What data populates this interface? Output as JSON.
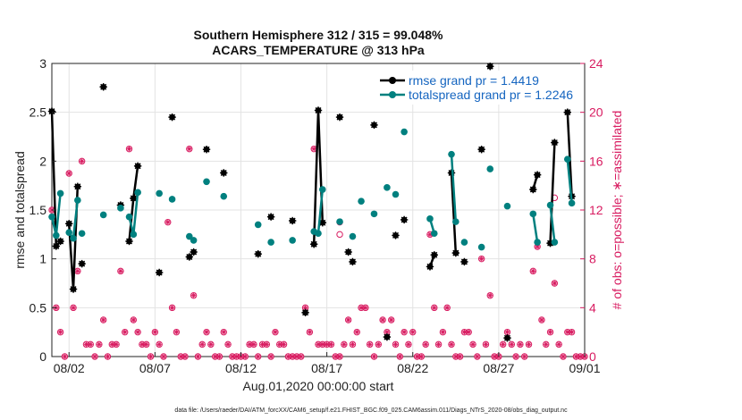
{
  "chart_data": {
    "type": "line",
    "title_line1": "Southern Hemisphere 312 / 315 = 99.048%",
    "title_line2": "ACARS_TEMPERATURE @ 313 hPa",
    "ylabel": "rmse and totalspread",
    "ylabel_right": "# of obs: o=possible; ∗=assimilated",
    "xlabel": "Aug.01,2020 00:00:00 start",
    "footnote": "data file: /Users/raeder/DAI/ATM_forcXX/CAM6_setup/f.e21.FHIST_BGC.f09_025.CAM6assim.011/Diags_NTrS_2020-08/obs_diag_output.nc",
    "ylim": [
      0,
      3
    ],
    "ylim_right": [
      0,
      24
    ],
    "xlim": [
      1,
      32
    ],
    "yticks": [
      0,
      0.5,
      1,
      1.5,
      2,
      2.5,
      3
    ],
    "ytick_labels": [
      "0",
      "0.5",
      "1",
      "1.5",
      "2",
      "2.5",
      "3"
    ],
    "yticks_right": [
      0,
      4,
      8,
      12,
      16,
      20,
      24
    ],
    "xticks": [
      2,
      7,
      12,
      17,
      22,
      27,
      32
    ],
    "xtick_labels": [
      "08/02",
      "08/07",
      "08/12",
      "08/17",
      "08/22",
      "08/27",
      "09/01"
    ],
    "colors": {
      "rmse": "#000000",
      "spread": "#00807f",
      "obs": "#d81b60",
      "legend_text": "#1565c0",
      "grid": "#e3e3e3"
    },
    "series": [
      {
        "name": "rmse grand pr = 1.4419",
        "key": "rmse",
        "points": [
          [
            1.0,
            2.51
          ],
          [
            1.25,
            1.13
          ],
          [
            1.5,
            1.18
          ],
          [
            2.0,
            1.36
          ],
          [
            2.25,
            0.69
          ],
          [
            2.5,
            1.74
          ],
          [
            2.75,
            0.95
          ],
          [
            4.0,
            2.76
          ],
          [
            5.0,
            1.55
          ],
          [
            5.5,
            1.18
          ],
          [
            5.75,
            1.62
          ],
          [
            6.0,
            1.95
          ],
          [
            7.25,
            0.86
          ],
          [
            8.0,
            2.45
          ],
          [
            9.0,
            1.02
          ],
          [
            9.25,
            1.07
          ],
          [
            10.0,
            2.12
          ],
          [
            11.0,
            1.88
          ],
          [
            13.0,
            1.05
          ],
          [
            13.75,
            1.43
          ],
          [
            15.0,
            1.39
          ],
          [
            15.75,
            0.45
          ],
          [
            16.25,
            1.15
          ],
          [
            16.5,
            2.52
          ],
          [
            16.75,
            1.37
          ],
          [
            17.75,
            2.45
          ],
          [
            18.25,
            1.07
          ],
          [
            18.5,
            0.97
          ],
          [
            19.75,
            2.37
          ],
          [
            20.5,
            0.2
          ],
          [
            21.0,
            1.24
          ],
          [
            21.5,
            1.4
          ],
          [
            23.0,
            0.92
          ],
          [
            23.25,
            1.04
          ],
          [
            24.25,
            1.88
          ],
          [
            24.5,
            1.06
          ],
          [
            25.0,
            0.97
          ],
          [
            26.0,
            2.12
          ],
          [
            26.5,
            2.97
          ],
          [
            27.5,
            0.19
          ],
          [
            29.0,
            1.71
          ],
          [
            29.25,
            1.86
          ],
          [
            30.0,
            1.16
          ],
          [
            30.25,
            2.19
          ],
          [
            31.0,
            2.5
          ],
          [
            31.25,
            1.64
          ]
        ],
        "segments": [
          [
            [
              1.0,
              2.51
            ],
            [
              1.25,
              1.13
            ],
            [
              1.5,
              1.18
            ]
          ],
          [
            [
              2.0,
              1.36
            ],
            [
              2.25,
              0.69
            ],
            [
              2.5,
              1.74
            ]
          ],
          [
            [
              5.5,
              1.18
            ],
            [
              5.75,
              1.62
            ],
            [
              6.0,
              1.95
            ]
          ],
          [
            [
              16.25,
              1.15
            ],
            [
              16.5,
              2.52
            ],
            [
              16.75,
              1.37
            ]
          ],
          [
            [
              23.0,
              0.92
            ],
            [
              23.25,
              1.04
            ]
          ],
          [
            [
              24.25,
              1.88
            ],
            [
              24.5,
              1.06
            ]
          ],
          [
            [
              29.0,
              1.71
            ],
            [
              29.25,
              1.86
            ]
          ],
          [
            [
              30.0,
              1.16
            ],
            [
              30.25,
              2.19
            ]
          ],
          [
            [
              31.0,
              2.5
            ],
            [
              31.25,
              1.64
            ]
          ]
        ]
      },
      {
        "name": "totalspread grand pr = 1.2246",
        "key": "spread",
        "points": [
          [
            1.0,
            1.43
          ],
          [
            1.25,
            1.24
          ],
          [
            1.5,
            1.67
          ],
          [
            2.0,
            1.27
          ],
          [
            2.25,
            1.21
          ],
          [
            2.5,
            1.6
          ],
          [
            2.75,
            1.26
          ],
          [
            4.0,
            1.45
          ],
          [
            5.0,
            1.52
          ],
          [
            5.5,
            1.43
          ],
          [
            5.75,
            1.25
          ],
          [
            6.0,
            1.68
          ],
          [
            7.25,
            1.67
          ],
          [
            8.0,
            1.61
          ],
          [
            9.0,
            1.23
          ],
          [
            9.25,
            1.19
          ],
          [
            10.0,
            1.79
          ],
          [
            11.0,
            1.64
          ],
          [
            13.0,
            1.35
          ],
          [
            13.75,
            1.17
          ],
          [
            15.0,
            1.19
          ],
          [
            16.25,
            1.28
          ],
          [
            16.5,
            1.26
          ],
          [
            16.75,
            1.71
          ],
          [
            17.75,
            1.38
          ],
          [
            18.5,
            1.23
          ],
          [
            19.0,
            1.59
          ],
          [
            19.75,
            1.46
          ],
          [
            20.5,
            1.73
          ],
          [
            21.0,
            1.66
          ],
          [
            21.5,
            2.3
          ],
          [
            23.0,
            1.41
          ],
          [
            23.25,
            1.26
          ],
          [
            24.25,
            2.07
          ],
          [
            24.5,
            1.38
          ],
          [
            25.0,
            1.17
          ],
          [
            26.0,
            1.12
          ],
          [
            26.5,
            1.92
          ],
          [
            27.5,
            1.54
          ],
          [
            29.0,
            1.46
          ],
          [
            29.25,
            1.17
          ],
          [
            30.0,
            1.55
          ],
          [
            30.25,
            1.17
          ],
          [
            31.0,
            2.02
          ],
          [
            31.25,
            1.57
          ]
        ],
        "segments": [
          [
            [
              1.0,
              1.43
            ],
            [
              1.25,
              1.24
            ],
            [
              1.5,
              1.67
            ]
          ],
          [
            [
              2.0,
              1.27
            ],
            [
              2.25,
              1.21
            ],
            [
              2.5,
              1.6
            ]
          ],
          [
            [
              5.5,
              1.43
            ],
            [
              5.75,
              1.25
            ],
            [
              6.0,
              1.68
            ]
          ],
          [
            [
              16.25,
              1.28
            ],
            [
              16.5,
              1.26
            ],
            [
              16.75,
              1.71
            ]
          ],
          [
            [
              23.0,
              1.41
            ],
            [
              23.25,
              1.26
            ]
          ],
          [
            [
              24.25,
              2.07
            ],
            [
              24.5,
              1.38
            ]
          ],
          [
            [
              29.0,
              1.46
            ],
            [
              29.25,
              1.17
            ]
          ],
          [
            [
              30.0,
              1.55
            ],
            [
              30.25,
              1.17
            ]
          ],
          [
            [
              31.0,
              2.02
            ],
            [
              31.25,
              1.57
            ]
          ]
        ]
      }
    ],
    "obs_counts": [
      [
        1.0,
        12
      ],
      [
        1.25,
        4
      ],
      [
        1.5,
        2
      ],
      [
        1.75,
        0
      ],
      [
        2.0,
        15
      ],
      [
        2.25,
        4
      ],
      [
        2.5,
        7
      ],
      [
        2.75,
        16
      ],
      [
        3.0,
        1
      ],
      [
        3.25,
        1
      ],
      [
        3.5,
        0
      ],
      [
        3.75,
        1
      ],
      [
        4.0,
        3
      ],
      [
        4.25,
        0
      ],
      [
        4.5,
        1
      ],
      [
        4.75,
        1
      ],
      [
        5.0,
        7
      ],
      [
        5.25,
        2
      ],
      [
        5.5,
        17
      ],
      [
        5.75,
        3
      ],
      [
        6.0,
        2
      ],
      [
        6.25,
        1
      ],
      [
        6.5,
        1
      ],
      [
        6.75,
        0
      ],
      [
        7.0,
        2
      ],
      [
        7.25,
        1
      ],
      [
        7.5,
        0
      ],
      [
        7.75,
        11
      ],
      [
        8.0,
        4
      ],
      [
        8.25,
        2
      ],
      [
        8.5,
        0
      ],
      [
        8.75,
        0
      ],
      [
        9.0,
        17
      ],
      [
        9.25,
        5
      ],
      [
        9.5,
        0
      ],
      [
        9.75,
        1
      ],
      [
        10.0,
        2
      ],
      [
        10.25,
        1
      ],
      [
        10.5,
        0
      ],
      [
        10.75,
        0
      ],
      [
        11.0,
        2
      ],
      [
        11.25,
        1
      ],
      [
        11.5,
        0
      ],
      [
        11.75,
        0
      ],
      [
        12.0,
        0
      ],
      [
        12.25,
        0
      ],
      [
        12.5,
        1
      ],
      [
        12.75,
        1
      ],
      [
        13.0,
        0
      ],
      [
        13.25,
        1
      ],
      [
        13.5,
        1
      ],
      [
        13.75,
        0
      ],
      [
        14.0,
        2
      ],
      [
        14.25,
        1
      ],
      [
        14.5,
        1
      ],
      [
        14.75,
        0
      ],
      [
        15.0,
        0
      ],
      [
        15.25,
        0
      ],
      [
        15.5,
        0
      ],
      [
        15.75,
        4
      ],
      [
        16.0,
        2
      ],
      [
        16.25,
        17
      ],
      [
        16.5,
        1
      ],
      [
        16.75,
        1
      ],
      [
        17.0,
        1
      ],
      [
        17.25,
        1
      ],
      [
        17.5,
        0
      ],
      [
        17.75,
        0
      ],
      [
        18.0,
        1
      ],
      [
        18.25,
        3
      ],
      [
        18.5,
        1
      ],
      [
        18.75,
        2
      ],
      [
        19.0,
        4
      ],
      [
        19.25,
        4
      ],
      [
        19.5,
        1
      ],
      [
        19.75,
        0
      ],
      [
        20.0,
        1
      ],
      [
        20.25,
        3
      ],
      [
        20.5,
        2
      ],
      [
        20.75,
        3
      ],
      [
        21.0,
        1
      ],
      [
        21.25,
        0
      ],
      [
        21.5,
        2
      ],
      [
        21.75,
        1
      ],
      [
        22.0,
        2
      ],
      [
        22.25,
        0
      ],
      [
        22.5,
        0
      ],
      [
        22.75,
        1
      ],
      [
        23.0,
        10
      ],
      [
        23.25,
        4
      ],
      [
        23.5,
        1
      ],
      [
        23.75,
        2
      ],
      [
        24.0,
        4
      ],
      [
        24.25,
        1
      ],
      [
        24.5,
        0
      ],
      [
        24.75,
        0
      ],
      [
        25.0,
        2
      ],
      [
        25.25,
        2
      ],
      [
        25.5,
        1
      ],
      [
        25.75,
        0
      ],
      [
        26.0,
        8
      ],
      [
        26.25,
        1
      ],
      [
        26.5,
        5
      ],
      [
        26.75,
        0
      ],
      [
        27.0,
        0
      ],
      [
        27.25,
        1
      ],
      [
        27.5,
        2
      ],
      [
        27.75,
        1
      ],
      [
        28.0,
        0
      ],
      [
        28.25,
        1
      ],
      [
        28.5,
        0
      ],
      [
        28.75,
        1
      ],
      [
        29.0,
        7
      ],
      [
        29.25,
        9
      ],
      [
        29.5,
        3
      ],
      [
        29.75,
        1
      ],
      [
        30.0,
        2
      ],
      [
        30.25,
        6
      ],
      [
        30.5,
        1
      ],
      [
        30.75,
        0
      ],
      [
        31.0,
        2
      ],
      [
        31.25,
        2
      ],
      [
        31.5,
        0
      ],
      [
        31.75,
        0
      ],
      [
        32.0,
        0
      ]
    ],
    "obs_possible_extra": [
      [
        17.75,
        10
      ],
      [
        17.75,
        11
      ],
      [
        30.25,
        13
      ]
    ]
  }
}
